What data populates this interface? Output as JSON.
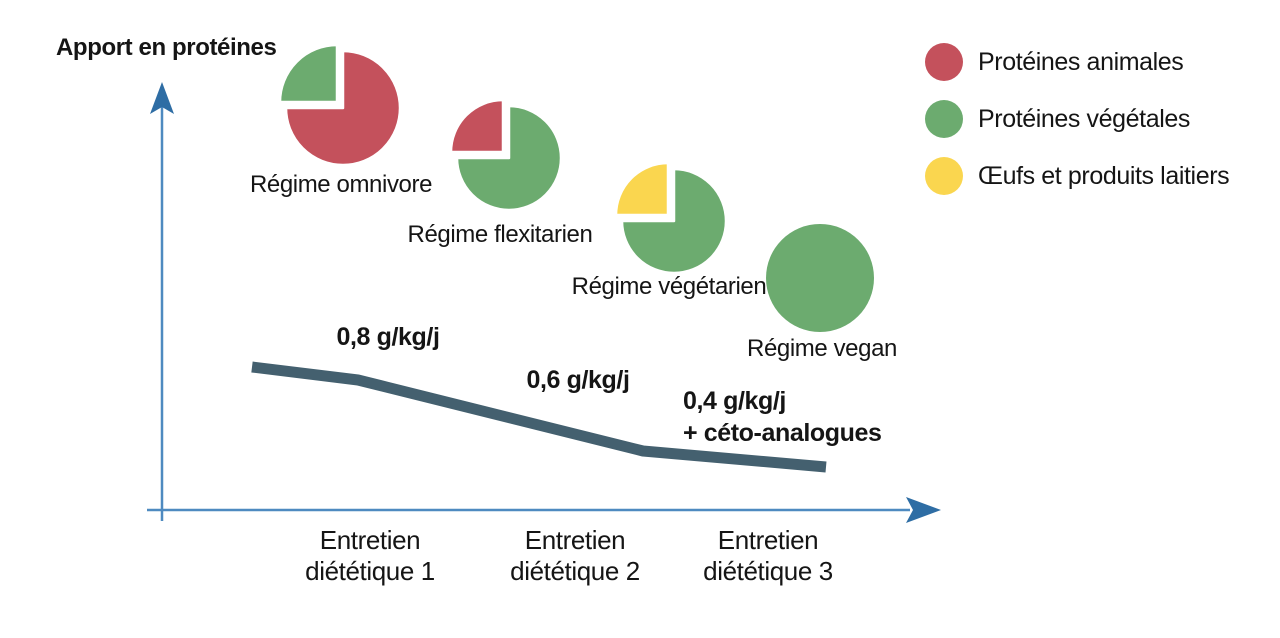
{
  "chart_data": {
    "type": "composite",
    "subtypes": [
      "line",
      "pie"
    ],
    "ylabel": "Apport en protéines",
    "xlabel": "",
    "grid": false,
    "legend_position": "top-right",
    "x_categories": [
      "Entretien diététique 1",
      "Entretien diététique 2",
      "Entretien diététique 3"
    ],
    "colors": {
      "animal": "#c4515c",
      "vegetal": "#6cab6f",
      "eggs_dairy": "#fad64f",
      "line": "#44606f",
      "axis": "#4e8ac0",
      "axis_arrow": "#2e6da4",
      "text": "#151515"
    },
    "line": {
      "unit": "g/kg/j",
      "values": [
        0.8,
        0.6,
        0.4
      ],
      "trend": "decreasing",
      "annotations": [
        {
          "lines": [
            "0,8 g/kg/j"
          ]
        },
        {
          "lines": [
            "0,6 g/kg/j"
          ]
        },
        {
          "lines": [
            "0,4 g/kg/j",
            "+ céto-analogues"
          ]
        }
      ]
    },
    "pies": [
      {
        "label": "Régime omnivore",
        "slices": [
          {
            "legend": "Protéines animales",
            "color_key": "animal",
            "fraction": 0.75
          },
          {
            "legend": "Protéines végétales",
            "color_key": "vegetal",
            "fraction": 0.25,
            "exploded": true
          }
        ]
      },
      {
        "label": "Régime flexitarien",
        "slices": [
          {
            "legend": "Protéines végétales",
            "color_key": "vegetal",
            "fraction": 0.75
          },
          {
            "legend": "Protéines animales",
            "color_key": "animal",
            "fraction": 0.25,
            "exploded": true
          }
        ]
      },
      {
        "label": "Régime végétarien",
        "slices": [
          {
            "legend": "Protéines végétales",
            "color_key": "vegetal",
            "fraction": 0.75
          },
          {
            "legend": "Œufs et produits laitiers",
            "color_key": "eggs_dairy",
            "fraction": 0.25,
            "exploded": true
          }
        ]
      },
      {
        "label": "Régime vegan",
        "slices": [
          {
            "legend": "Protéines végétales",
            "color_key": "vegetal",
            "fraction": 1.0
          }
        ]
      }
    ],
    "legend": [
      {
        "label": "Protéines animales",
        "color_key": "animal"
      },
      {
        "label": "Protéines végétales",
        "color_key": "vegetal"
      },
      {
        "label": "Œufs et produits laitiers",
        "color_key": "eggs_dairy"
      }
    ]
  }
}
